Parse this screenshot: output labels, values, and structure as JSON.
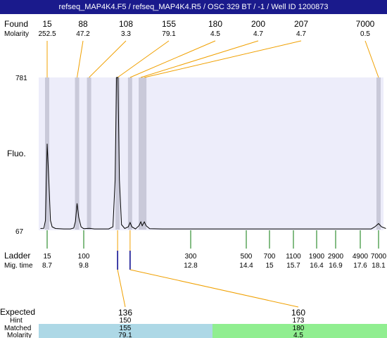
{
  "title": "refseq_MAP4K4.F5 / refseq_MAP4K4.R5 / OSC 329 BT / -1 / Well ID 1200873",
  "labels": {
    "found": "Found",
    "molarity": "Molarity",
    "fluo": "Fluo.",
    "ladder": "Ladder",
    "mig_time": "Mig. time",
    "expected": "Expected",
    "hint": "Hint",
    "matched": "Matched",
    "molarity_bottom": "Molarity"
  },
  "colors": {
    "title_bg": "#1a1a8c",
    "plot_bg": "#ededfa",
    "peak_band": "#c9c9d9",
    "found_line": "#f0a000",
    "ladder_tick": "#0a7a0a",
    "expected_tick": "#00008b",
    "matched_1": "#add8e6",
    "matched_2": "#90ee90"
  },
  "chart_data": {
    "type": "line",
    "ylim": [
      67,
      781
    ],
    "y_ticks": [
      "781",
      "67"
    ],
    "found": [
      {
        "size": "15",
        "molarity": "252.5",
        "mig_time": 8.7
      },
      {
        "size": "88",
        "molarity": "47.2",
        "mig_time": 9.6
      },
      {
        "size": "108",
        "molarity": "3.3",
        "mig_time": 9.95
      },
      {
        "size": "155",
        "molarity": "79.1",
        "mig_time": 10.75
      },
      {
        "size": "180",
        "molarity": "4.5",
        "mig_time": 11.1
      },
      {
        "size": "200",
        "molarity": "4.7",
        "mig_time": 11.4
      },
      {
        "size": "207",
        "molarity": "4.7",
        "mig_time": 11.5
      },
      {
        "size": "7000",
        "molarity": "0.5",
        "mig_time": 18.1
      }
    ],
    "ladder": [
      {
        "size": "15",
        "time": "8.7"
      },
      {
        "size": "100",
        "time": "9.8"
      },
      {
        "size": "300",
        "time": "12.8"
      },
      {
        "size": "500",
        "time": "14.4"
      },
      {
        "size": "700",
        "time": "15"
      },
      {
        "size": "1100",
        "time": "15.7"
      },
      {
        "size": "1900",
        "time": "16.4"
      },
      {
        "size": "2900",
        "time": "16.9"
      },
      {
        "size": "4900",
        "time": "17.6"
      },
      {
        "size": "7000",
        "time": "18.1"
      }
    ],
    "trace": [
      [
        8.5,
        72
      ],
      [
        8.6,
        73
      ],
      [
        8.65,
        110
      ],
      [
        8.7,
        470
      ],
      [
        8.75,
        300
      ],
      [
        8.8,
        110
      ],
      [
        8.85,
        80
      ],
      [
        8.95,
        72
      ],
      [
        9.2,
        70
      ],
      [
        9.4,
        70
      ],
      [
        9.5,
        74
      ],
      [
        9.55,
        105
      ],
      [
        9.6,
        190
      ],
      [
        9.65,
        125
      ],
      [
        9.72,
        80
      ],
      [
        9.8,
        71
      ],
      [
        9.95,
        73
      ],
      [
        10.1,
        70
      ],
      [
        10.5,
        70
      ],
      [
        10.62,
        80
      ],
      [
        10.68,
        300
      ],
      [
        10.72,
        781
      ],
      [
        10.76,
        781
      ],
      [
        10.8,
        300
      ],
      [
        10.86,
        90
      ],
      [
        10.95,
        72
      ],
      [
        11.05,
        80
      ],
      [
        11.1,
        100
      ],
      [
        11.15,
        80
      ],
      [
        11.25,
        70
      ],
      [
        11.35,
        85
      ],
      [
        11.4,
        103
      ],
      [
        11.44,
        85
      ],
      [
        11.5,
        103
      ],
      [
        11.55,
        85
      ],
      [
        11.65,
        71
      ],
      [
        12.0,
        70
      ],
      [
        15.0,
        70
      ],
      [
        17.9,
        70
      ],
      [
        18.0,
        80
      ],
      [
        18.1,
        95
      ],
      [
        18.18,
        80
      ],
      [
        18.3,
        72
      ]
    ],
    "expected": [
      {
        "expected": "136",
        "hint": "150",
        "matched": "155",
        "molarity": "79.1",
        "mig_time": 10.75
      },
      {
        "expected": "160",
        "hint": "173",
        "matched": "180",
        "molarity": "4.5",
        "mig_time": 11.1
      }
    ]
  }
}
